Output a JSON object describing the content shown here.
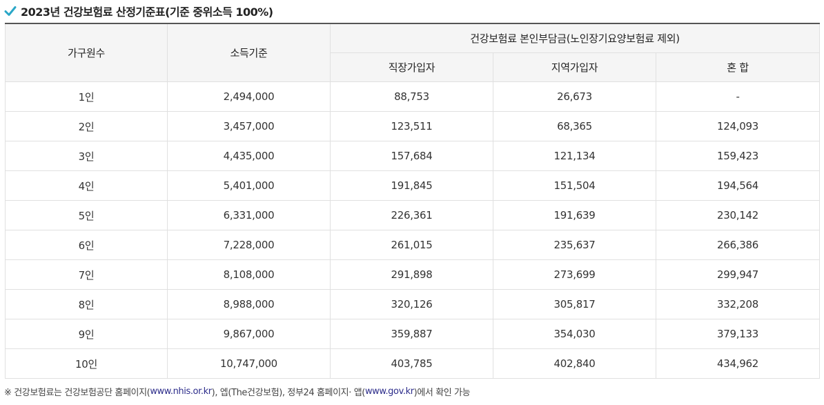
{
  "title": "2023년 건강보험료 산정기준표(기준 중위소득 100%)",
  "header": {
    "households": "가구원수",
    "income": "소득기준",
    "premium_group": "건강보험료 본인부담금(노인장기요양보험료 제외)",
    "employee": "직장가입자",
    "regional": "지역가입자",
    "mixed": "혼 합"
  },
  "rows": [
    {
      "households": "1인",
      "income": "2,494,000",
      "employee": "88,753",
      "regional": "26,673",
      "mixed": "-"
    },
    {
      "households": "2인",
      "income": "3,457,000",
      "employee": "123,511",
      "regional": "68,365",
      "mixed": "124,093"
    },
    {
      "households": "3인",
      "income": "4,435,000",
      "employee": "157,684",
      "regional": "121,134",
      "mixed": "159,423"
    },
    {
      "households": "4인",
      "income": "5,401,000",
      "employee": "191,845",
      "regional": "151,504",
      "mixed": "194,564"
    },
    {
      "households": "5인",
      "income": "6,331,000",
      "employee": "226,361",
      "regional": "191,639",
      "mixed": "230,142"
    },
    {
      "households": "6인",
      "income": "7,228,000",
      "employee": "261,015",
      "regional": "235,637",
      "mixed": "266,386"
    },
    {
      "households": "7인",
      "income": "8,108,000",
      "employee": "291,898",
      "regional": "273,699",
      "mixed": "299,947"
    },
    {
      "households": "8인",
      "income": "8,988,000",
      "employee": "320,126",
      "regional": "305,817",
      "mixed": "332,208"
    },
    {
      "households": "9인",
      "income": "9,867,000",
      "employee": "359,887",
      "regional": "354,030",
      "mixed": "379,133"
    },
    {
      "households": "10인",
      "income": "10,747,000",
      "employee": "403,785",
      "regional": "402,840",
      "mixed": "434,962"
    }
  ],
  "note": {
    "prefix": "※ 건강보험료는 건강보험공단 홈페이지(",
    "link1": "www.nhis.or.kr",
    "middle": "), 엡(The건강보험), 정부24 홈페이지· 앱(",
    "link2": "www.gov.kr",
    "suffix": ")에서 확인 가능"
  },
  "colors": {
    "check": "#2aa7c7",
    "link": "#2c2c8a"
  },
  "icons": {
    "title_icon": "check-icon"
  }
}
